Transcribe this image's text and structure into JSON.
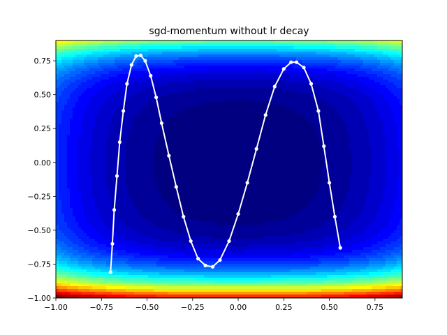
{
  "chart_data": {
    "type": "scatter",
    "title": "sgd-momentum without lr decay",
    "xlabel": "",
    "ylabel": "",
    "xlim": [
      -1.0,
      0.9
    ],
    "ylim": [
      -1.0,
      0.9
    ],
    "x_ticks": [
      -1.0,
      -0.75,
      -0.5,
      -0.25,
      0.0,
      0.25,
      0.5,
      0.75
    ],
    "x_tick_labels": [
      "−1.00",
      "−0.75",
      "−0.50",
      "−0.25",
      "0.00",
      "0.25",
      "0.50",
      "0.75"
    ],
    "y_ticks": [
      -1.0,
      -0.75,
      -0.5,
      -0.25,
      0.0,
      0.25,
      0.5,
      0.75
    ],
    "y_tick_labels": [
      "−1.00",
      "−0.75",
      "−0.50",
      "−0.25",
      "0.00",
      "0.25",
      "0.50",
      "0.75"
    ],
    "grid": false,
    "background": "filled-contour",
    "colormap": "jet",
    "series": [
      {
        "marker_color": "#ffffff",
        "points": [
          [
            -0.7,
            -0.81
          ],
          [
            -0.69,
            -0.6
          ],
          [
            -0.68,
            -0.35
          ],
          [
            -0.665,
            -0.1
          ],
          [
            -0.65,
            0.15
          ],
          [
            -0.63,
            0.38
          ],
          [
            -0.61,
            0.58
          ],
          [
            -0.585,
            0.72
          ],
          [
            -0.56,
            0.785
          ],
          [
            -0.535,
            0.79
          ],
          [
            -0.51,
            0.75
          ],
          [
            -0.48,
            0.64
          ],
          [
            -0.45,
            0.48
          ],
          [
            -0.42,
            0.29
          ],
          [
            -0.38,
            0.05
          ],
          [
            -0.34,
            -0.18
          ],
          [
            -0.3,
            -0.4
          ],
          [
            -0.26,
            -0.58
          ],
          [
            -0.22,
            -0.71
          ],
          [
            -0.18,
            -0.76
          ],
          [
            -0.14,
            -0.77
          ],
          [
            -0.1,
            -0.72
          ],
          [
            -0.05,
            -0.58
          ],
          [
            0.0,
            -0.38
          ],
          [
            0.05,
            -0.15
          ],
          [
            0.1,
            0.1
          ],
          [
            0.15,
            0.35
          ],
          [
            0.2,
            0.56
          ],
          [
            0.25,
            0.69
          ],
          [
            0.29,
            0.74
          ],
          [
            0.32,
            0.74
          ],
          [
            0.36,
            0.7
          ],
          [
            0.4,
            0.58
          ],
          [
            0.44,
            0.38
          ],
          [
            0.47,
            0.12
          ],
          [
            0.5,
            -0.15
          ],
          [
            0.53,
            -0.4
          ],
          [
            0.56,
            -0.63
          ]
        ]
      }
    ]
  }
}
